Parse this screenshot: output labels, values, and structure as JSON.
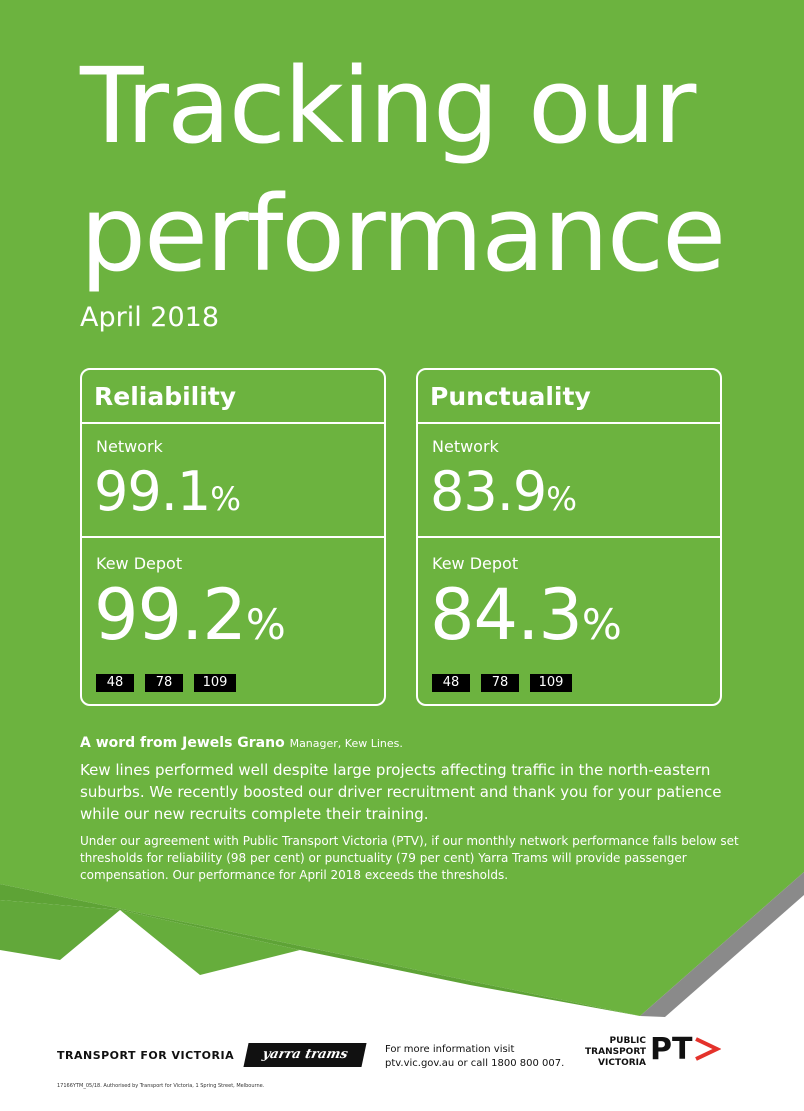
{
  "title": {
    "line1": "Tracking our",
    "line2": "performance"
  },
  "period": "April 2018",
  "reliability": {
    "heading": "Reliability",
    "network_label": "Network",
    "network_value": "99.1",
    "depot_label": "Kew Depot",
    "depot_value": "99.2",
    "unit": "%",
    "routes": [
      "48",
      "78",
      "109"
    ]
  },
  "punctuality": {
    "heading": "Punctuality",
    "network_label": "Network",
    "network_value": "83.9",
    "depot_label": "Kew Depot",
    "depot_value": "84.3",
    "unit": "%",
    "routes": [
      "48",
      "78",
      "109"
    ]
  },
  "message": {
    "intro": "A word from Jewels Grano",
    "role": "Manager, Kew Lines.",
    "body": "Kew lines performed well despite large projects affecting traffic in the north-eastern suburbs. We recently boosted our driver recruitment and thank you for your patience while our new recruits complete their training.",
    "agreement": "Under our agreement with Public Transport Victoria (PTV), if our monthly network performance falls below set thresholds for reliability (98 per cent) or punctuality (79 per cent) Yarra Trams will provide passenger compensation. Our performance for April 2018 exceeds the thresholds."
  },
  "footer": {
    "tfv": "TRANSPORT FOR VICTORIA",
    "yarra_trams": "yarra trams",
    "info_line1": "For more information visit",
    "info_line2": "ptv.vic.gov.au or call 1800 800 007.",
    "ptv_line1": "PUBLIC",
    "ptv_line2": "TRANSPORT",
    "ptv_line3": "VICTORIA",
    "ptv_mark": "PT",
    "fine_print": "17166YTM_05/18. Authorised by Transport for Victoria, 1 Spring Street, Melbourne."
  },
  "colors": {
    "green": "#6cb33f",
    "green_dark": "#5ea336",
    "grey": "#8a8a8a",
    "black": "#111111",
    "ptv_red": "#e4322b"
  }
}
